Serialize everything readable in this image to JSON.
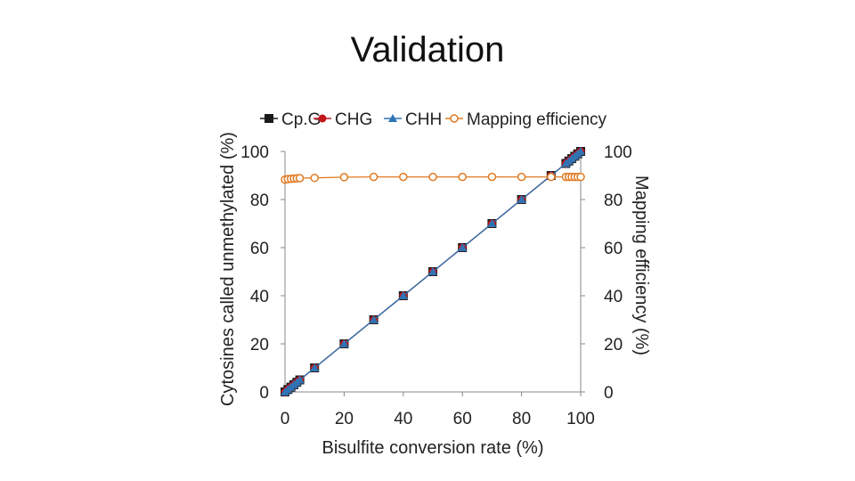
{
  "slide": {
    "title": "Validation"
  },
  "chart_data": {
    "type": "line",
    "title": "",
    "xlabel": "Bisulfite conversion rate (%)",
    "ylabel": "Cytosines called unmethylated (%)",
    "y2label": "Mapping efficiency (%)",
    "xlim": [
      0,
      100
    ],
    "ylim": [
      0,
      100
    ],
    "y2lim": [
      0,
      100
    ],
    "xticks": [
      "0",
      "20",
      "40",
      "60",
      "80",
      "100"
    ],
    "yticks": [
      "0",
      "20",
      "40",
      "60",
      "80",
      "100"
    ],
    "y2ticks": [
      "0",
      "20",
      "40",
      "60",
      "80",
      "100"
    ],
    "legend_position": "top",
    "x": [
      0,
      1,
      2,
      3,
      4,
      5,
      10,
      20,
      30,
      40,
      50,
      60,
      70,
      80,
      90,
      95,
      96,
      97,
      98,
      99,
      100
    ],
    "series": [
      {
        "name": "Cp.G",
        "axis": "left",
        "marker": "square",
        "color": "#000000",
        "values": [
          0,
          1,
          2,
          3,
          4,
          5,
          10,
          20,
          30,
          40,
          50,
          60,
          70,
          80,
          90,
          95,
          96,
          97,
          98,
          99,
          100
        ]
      },
      {
        "name": "CHG",
        "axis": "left",
        "marker": "circle",
        "color": "#c0151b",
        "values": [
          0,
          1,
          2,
          3,
          4,
          5,
          10,
          20,
          30,
          40,
          50,
          60,
          70,
          80,
          90,
          95,
          96,
          97,
          98,
          99,
          100
        ]
      },
      {
        "name": "CHH",
        "axis": "left",
        "marker": "triangle",
        "color": "#2e74b5",
        "values": [
          0,
          1,
          2,
          3,
          4,
          5,
          10,
          20,
          30,
          40,
          50,
          60,
          70,
          80,
          90,
          95,
          96,
          97,
          98,
          99,
          100
        ]
      },
      {
        "name": "Mapping efficiency",
        "axis": "right",
        "marker": "open-circle",
        "color": "#e07b24",
        "values": [
          88.3,
          88.5,
          88.6,
          88.7,
          88.8,
          88.9,
          89.0,
          89.3,
          89.4,
          89.4,
          89.4,
          89.4,
          89.4,
          89.4,
          89.4,
          89.4,
          89.4,
          89.4,
          89.4,
          89.4,
          89.4
        ]
      }
    ]
  }
}
